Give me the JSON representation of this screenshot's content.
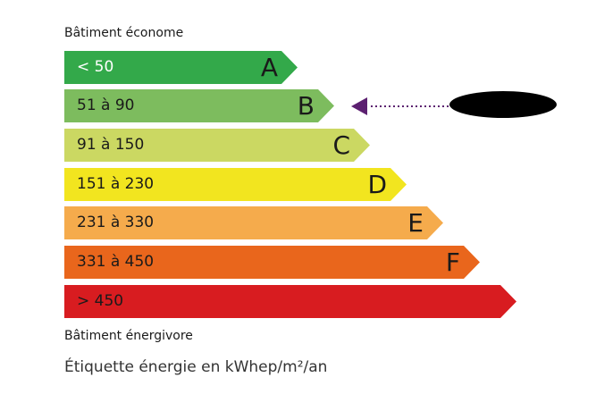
{
  "top_caption": "Bâtiment économe",
  "bottom_caption": "Bâtiment énergivore",
  "footer": "Étiquette énergie en kWhep/m²/an",
  "classes": [
    {
      "range": "< 50",
      "letter": "A",
      "color": "#33a94a",
      "text_color": "#ffffff"
    },
    {
      "range": "51 à 90",
      "letter": "B",
      "color": "#7dbc5e",
      "text_color": "#1a1a1a"
    },
    {
      "range": "91 à 150",
      "letter": "C",
      "color": "#cbd862",
      "text_color": "#1a1a1a"
    },
    {
      "range": "151 à 230",
      "letter": "D",
      "color": "#f2e51f",
      "text_color": "#1a1a1a"
    },
    {
      "range": "231 à 330",
      "letter": "E",
      "color": "#f5ab4c",
      "text_color": "#1a1a1a"
    },
    {
      "range": "331 à 450",
      "letter": "F",
      "color": "#e9661c",
      "text_color": "#1a1a1a"
    },
    {
      "range": "> 450",
      "letter": "",
      "color": "#d81c20",
      "text_color": "#1a1a1a"
    }
  ],
  "indicator": {
    "class": "B",
    "color": "#5c2070",
    "redacted": true
  }
}
